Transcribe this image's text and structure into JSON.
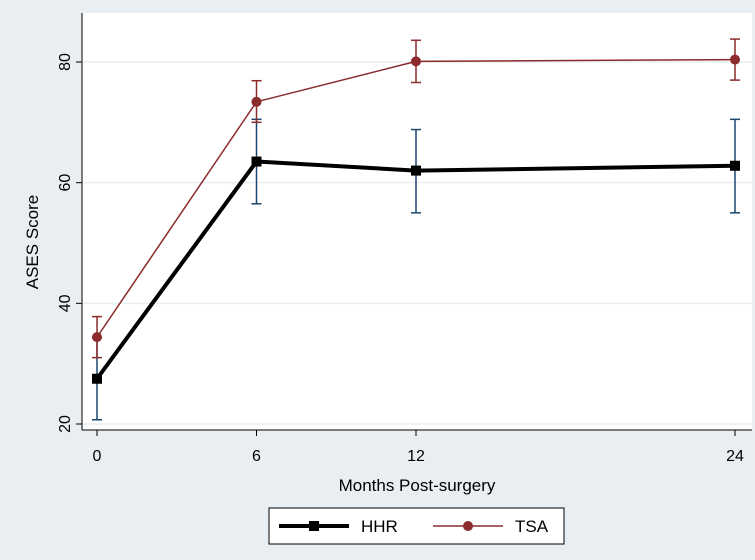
{
  "chart_data": {
    "type": "line",
    "title": "",
    "xlabel": "Months Post-surgery",
    "ylabel": "ASES Score",
    "x": [
      0,
      6,
      12,
      24
    ],
    "x_ticks": [
      "0",
      "6",
      "12",
      "24"
    ],
    "y_ticks": [
      "20",
      "40",
      "60",
      "80"
    ],
    "xlim": [
      0,
      24
    ],
    "ylim": [
      20,
      86
    ],
    "grid": "horizontal",
    "legend_position": "bottom-center",
    "series": [
      {
        "name": "HHR",
        "values": [
          27.5,
          63.5,
          62.0,
          62.8
        ],
        "error_low": [
          20.7,
          56.5,
          55.0,
          55.0
        ],
        "error_high": [
          34.3,
          70.5,
          68.8,
          70.5
        ],
        "color": "#000000",
        "marker": "square"
      },
      {
        "name": "TSA",
        "values": [
          34.4,
          73.4,
          80.1,
          80.4
        ],
        "error_low": [
          31.0,
          70.0,
          76.6,
          77.0
        ],
        "error_high": [
          37.8,
          76.9,
          83.6,
          83.8
        ],
        "color": "#8b2b2b",
        "marker": "circle"
      }
    ],
    "colors": {
      "background": "#e9eef2",
      "plot_area": "#ffffff",
      "grid": "#e9eef2",
      "errorbar": "#1a476f"
    }
  }
}
